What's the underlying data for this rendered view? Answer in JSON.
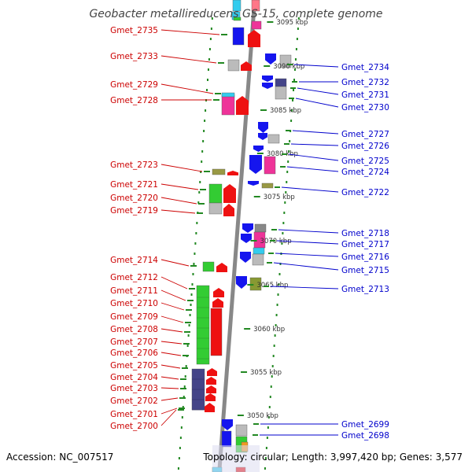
{
  "title": "Geobacter metallireducens GS-15, complete genome",
  "accession": "Accession: NC_007517",
  "summary": "Topology: circular; Length: 3,997,420 bp; Genes: 3,577",
  "colors": {
    "left_label": "#cc0000",
    "right_label": "#0000cc",
    "dots": "#228822",
    "backbone": "#888888",
    "blue": "#1515ee",
    "red": "#ee1111",
    "green": "#33cc33",
    "pink": "#ee3399",
    "gray": "#bbbbbb",
    "navy": "#444488",
    "olive": "#999944",
    "cyan": "#33ccee"
  },
  "kbp_ticks": [
    {
      "label": "3095 kbp"
    },
    {
      "label": "3090 kbp"
    },
    {
      "label": "3085 kbp"
    },
    {
      "label": "3080 kbp"
    },
    {
      "label": "3075 kbp"
    },
    {
      "label": "3070 kbp"
    },
    {
      "label": "3065 kbp"
    },
    {
      "label": "3060 kbp"
    },
    {
      "label": "3055 kbp"
    },
    {
      "label": "3050 kbp"
    }
  ],
  "left_genes": [
    {
      "label": "Gmet_2735"
    },
    {
      "label": "Gmet_2733"
    },
    {
      "label": "Gmet_2729"
    },
    {
      "label": "Gmet_2728"
    },
    {
      "label": "Gmet_2723"
    },
    {
      "label": "Gmet_2721"
    },
    {
      "label": "Gmet_2720"
    },
    {
      "label": "Gmet_2719"
    },
    {
      "label": "Gmet_2714"
    },
    {
      "label": "Gmet_2712"
    },
    {
      "label": "Gmet_2711"
    },
    {
      "label": "Gmet_2710"
    },
    {
      "label": "Gmet_2709"
    },
    {
      "label": "Gmet_2708"
    },
    {
      "label": "Gmet_2707"
    },
    {
      "label": "Gmet_2706"
    },
    {
      "label": "Gmet_2705"
    },
    {
      "label": "Gmet_2704"
    },
    {
      "label": "Gmet_2703"
    },
    {
      "label": "Gmet_2702"
    },
    {
      "label": "Gmet_2701"
    },
    {
      "label": "Gmet_2700"
    }
  ],
  "right_genes": [
    {
      "label": "Gmet_2734"
    },
    {
      "label": "Gmet_2732"
    },
    {
      "label": "Gmet_2731"
    },
    {
      "label": "Gmet_2730"
    },
    {
      "label": "Gmet_2727"
    },
    {
      "label": "Gmet_2726"
    },
    {
      "label": "Gmet_2725"
    },
    {
      "label": "Gmet_2724"
    },
    {
      "label": "Gmet_2722"
    },
    {
      "label": "Gmet_2718"
    },
    {
      "label": "Gmet_2717"
    },
    {
      "label": "Gmet_2716"
    },
    {
      "label": "Gmet_2715"
    },
    {
      "label": "Gmet_2713"
    },
    {
      "label": "Gmet_2699"
    },
    {
      "label": "Gmet_2698"
    }
  ]
}
